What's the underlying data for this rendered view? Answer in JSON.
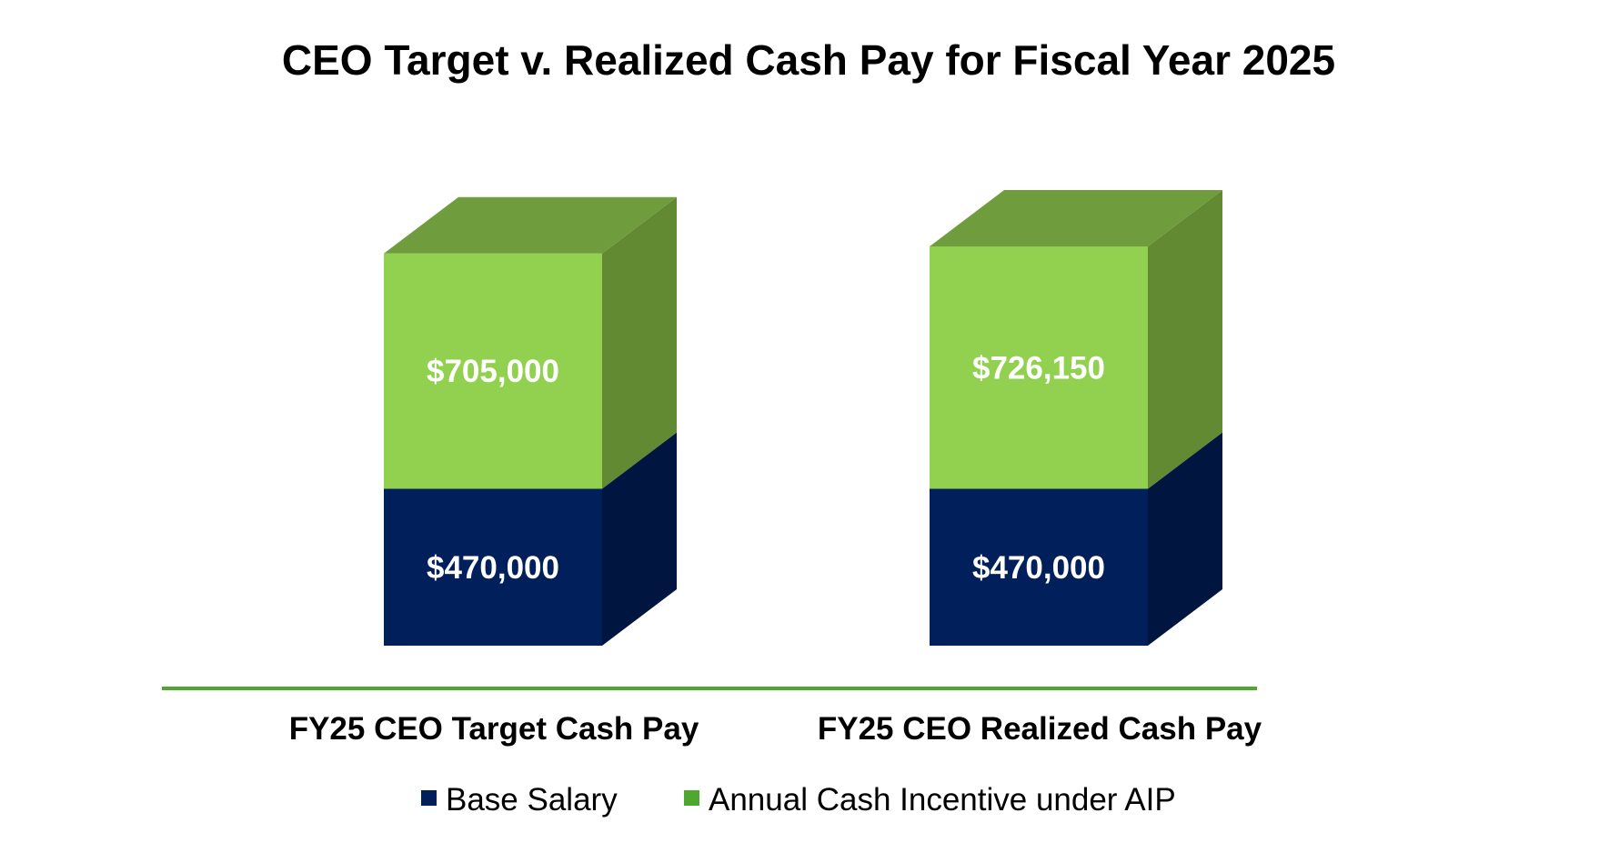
{
  "chart_data": {
    "type": "bar",
    "stacked": true,
    "style": "3d",
    "title": "CEO Target v. Realized Cash Pay for Fiscal Year 2025",
    "categories": [
      "FY25 CEO Target Cash Pay",
      "FY25 CEO Realized Cash Pay"
    ],
    "series": [
      {
        "name": "Base Salary",
        "values": [
          470000,
          470000
        ],
        "labels": [
          "$470,000",
          "$470,000"
        ],
        "color": "#001F5B"
      },
      {
        "name": "Annual Cash Incentive under AIP",
        "values": [
          705000,
          726150
        ],
        "labels": [
          "$705,000",
          "$726,150"
        ],
        "color": "#92D050"
      }
    ],
    "legend": {
      "placement": "bottom",
      "entries": [
        {
          "label": "Base Salary",
          "color": "#001F5B"
        },
        {
          "label": "Annual Cash Incentive under AIP",
          "color": "#4EA72E"
        }
      ]
    },
    "axis_color": "#4EA72E",
    "grid": false
  }
}
